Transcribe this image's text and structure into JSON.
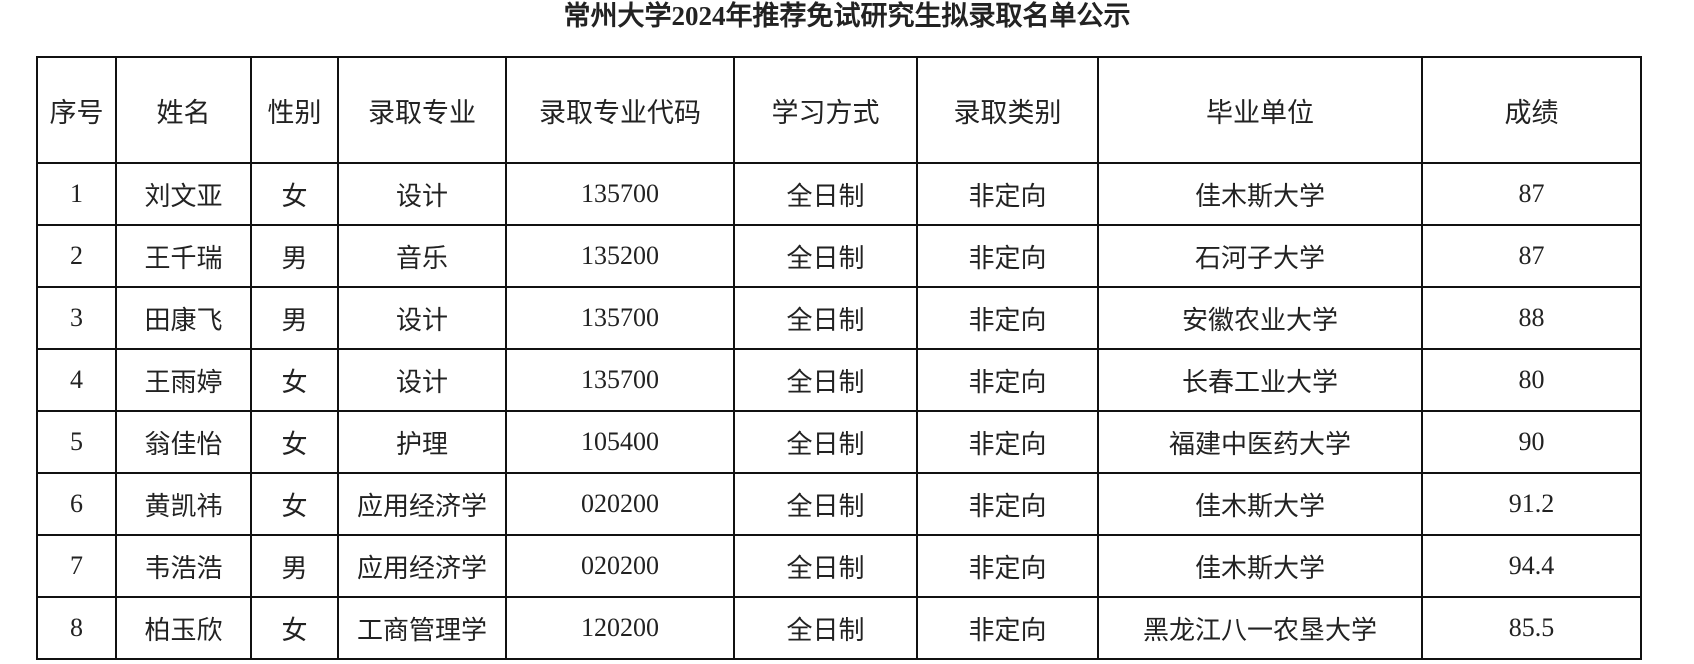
{
  "title": "常州大学2024年推荐免试研究生拟录取名单公示",
  "columns": [
    "序号",
    "姓名",
    "性别",
    "录取专业",
    "录取专业代码",
    "学习方式",
    "录取类别",
    "毕业单位",
    "成绩"
  ],
  "rows": [
    [
      "1",
      "刘文亚",
      "女",
      "设计",
      "135700",
      "全日制",
      "非定向",
      "佳木斯大学",
      "87"
    ],
    [
      "2",
      "王千瑞",
      "男",
      "音乐",
      "135200",
      "全日制",
      "非定向",
      "石河子大学",
      "87"
    ],
    [
      "3",
      "田康飞",
      "男",
      "设计",
      "135700",
      "全日制",
      "非定向",
      "安徽农业大学",
      "88"
    ],
    [
      "4",
      "王雨婷",
      "女",
      "设计",
      "135700",
      "全日制",
      "非定向",
      "长春工业大学",
      "80"
    ],
    [
      "5",
      "翁佳怡",
      "女",
      "护理",
      "105400",
      "全日制",
      "非定向",
      "福建中医药大学",
      "90"
    ],
    [
      "6",
      "黄凯祎",
      "女",
      "应用经济学",
      "020200",
      "全日制",
      "非定向",
      "佳木斯大学",
      "91.2"
    ],
    [
      "7",
      "韦浩浩",
      "男",
      "应用经济学",
      "020200",
      "全日制",
      "非定向",
      "佳木斯大学",
      "94.4"
    ],
    [
      "8",
      "柏玉欣",
      "女",
      "工商管理学",
      "120200",
      "全日制",
      "非定向",
      "黑龙江八一农垦大学",
      "85.5"
    ]
  ]
}
